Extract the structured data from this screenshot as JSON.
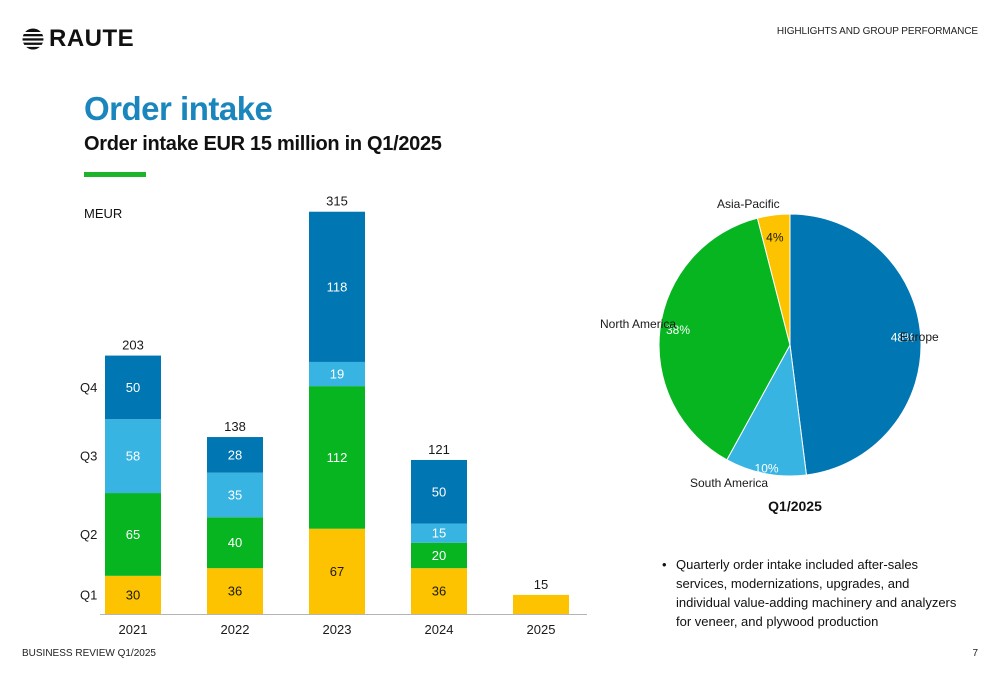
{
  "header": {
    "logo_text": "RAUTE",
    "section_label": "HIGHLIGHTS AND GROUP PERFORMANCE"
  },
  "title": "Order intake",
  "subtitle": "Order intake EUR 15 million in Q1/2025",
  "colors": {
    "title": "#1a86bd",
    "accent": "#1db32a",
    "q1": "#fdc300",
    "q2": "#06b520",
    "q3": "#38b4e3",
    "q4": "#0076b2"
  },
  "chart_data": [
    {
      "type": "bar",
      "stacked": true,
      "unit_label": "MEUR",
      "categories": [
        "2021",
        "2022",
        "2023",
        "2024",
        "2025"
      ],
      "series": [
        {
          "name": "Q1",
          "values": [
            30,
            36,
            67,
            36,
            15
          ],
          "color": "#fdc300",
          "label_color": "#1a1a1a"
        },
        {
          "name": "Q2",
          "values": [
            65,
            40,
            112,
            20,
            null
          ],
          "color": "#06b520",
          "label_color": "#ffffff"
        },
        {
          "name": "Q3",
          "values": [
            58,
            35,
            19,
            15,
            null
          ],
          "color": "#38b4e3",
          "label_color": "#ffffff"
        },
        {
          "name": "Q4",
          "values": [
            50,
            28,
            118,
            50,
            null
          ],
          "color": "#0076b2",
          "label_color": "#ffffff"
        }
      ],
      "totals": [
        203,
        138,
        315,
        121,
        15
      ],
      "show_segment_labels": [
        true,
        true,
        true,
        true,
        false
      ],
      "ylim": [
        0,
        315
      ],
      "grid": false,
      "legend": "left"
    },
    {
      "type": "pie",
      "title": "Q1/2025",
      "slices": [
        {
          "label": "Europe",
          "value": 48,
          "display": "48%",
          "color": "#0076b2"
        },
        {
          "label": "South America",
          "value": 10,
          "display": "10%",
          "color": "#38b4e3"
        },
        {
          "label": "North America",
          "value": 38,
          "display": "38%",
          "color": "#06b520"
        },
        {
          "label": "Asia-Pacific",
          "value": 4,
          "display": "4%",
          "color": "#fdc300"
        }
      ]
    }
  ],
  "bullets": [
    "Quarterly order intake included after-sales services, modernizations, upgrades, and individual value-adding machinery and analyzers for veneer, and plywood production"
  ],
  "footer": {
    "left": "BUSINESS REVIEW Q1/2025",
    "page_number": "7"
  }
}
